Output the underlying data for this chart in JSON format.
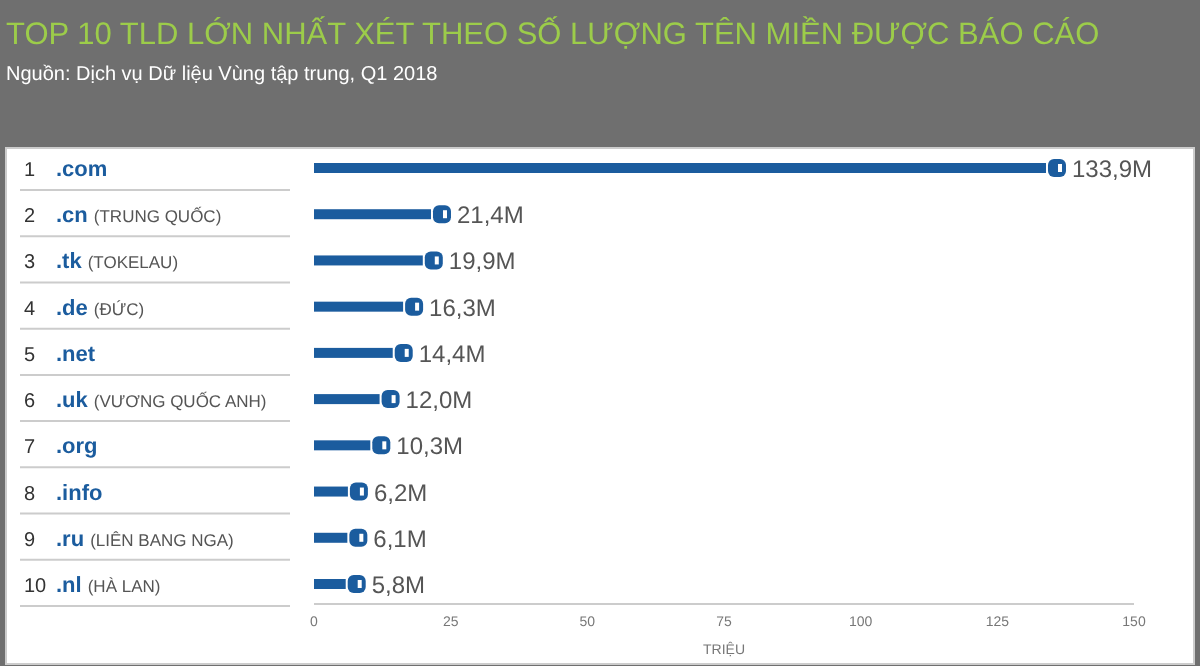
{
  "chart_data": {
    "type": "bar",
    "orientation": "horizontal",
    "title": "TOP 10 TLD LỚN NHẤT XÉT THEO SỐ LƯỢNG TÊN MIỀN ĐƯỢC BÁO CÁO",
    "subtitle": "Nguồn: Dịch vụ Dữ liệu Vùng tập trung, Q1 2018",
    "categories": [
      "1 .com",
      "2 .cn (TRUNG QUỐC)",
      "3 .tk (TOKELAU)",
      "4 .de (ĐỨC)",
      "5 .net",
      "6 .uk (VƯƠNG QUỐC ANH)",
      "7 .org",
      "8 .info",
      "9 .ru (LIÊN BANG NGA)",
      "10 .nl (HÀ LAN)"
    ],
    "values": [
      133.9,
      21.4,
      19.9,
      16.3,
      14.4,
      12.0,
      10.3,
      6.2,
      6.1,
      5.8
    ],
    "value_labels": [
      "133,9M",
      "21,4M",
      "19,9M",
      "16,3M",
      "14,4M",
      "12,0M",
      "10,3M",
      "6,2M",
      "6,1M",
      "5,8M"
    ],
    "color": "#1b5c9e",
    "xlabel": "TRIỆU",
    "xlim": [
      0,
      150
    ],
    "xticks": [
      0,
      25,
      50,
      75,
      100,
      125,
      150
    ],
    "grid": false
  }
}
